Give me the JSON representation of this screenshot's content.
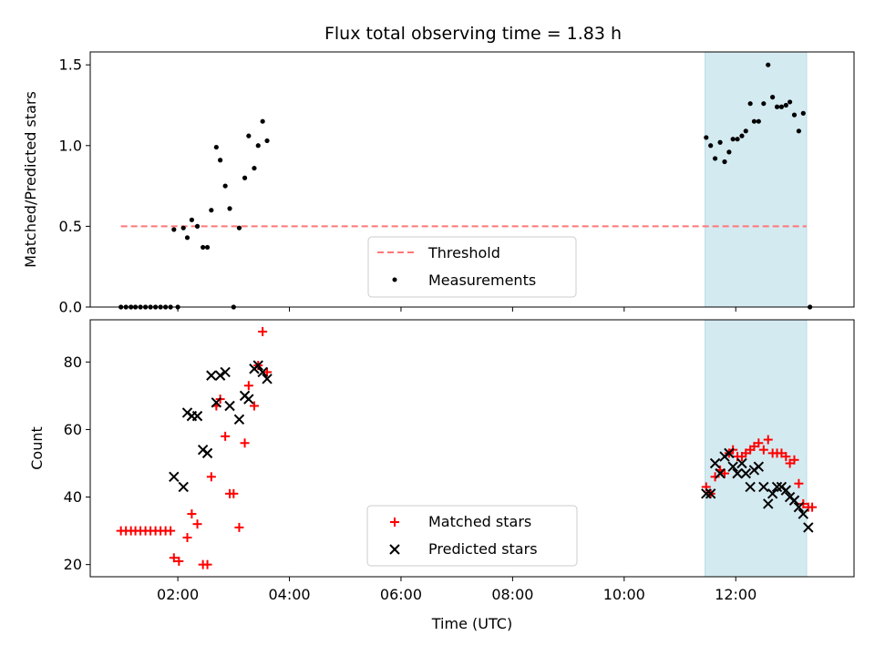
{
  "chart_data": {
    "title": "Flux total observing time = 1.83 h",
    "xlabel": "Time (UTC)",
    "x_ticks": [
      "02:00",
      "04:00",
      "06:00",
      "08:00",
      "10:00",
      "12:00"
    ],
    "x_tick_hours": [
      2,
      4,
      6,
      8,
      10,
      12
    ],
    "xlim_hours": [
      0.43,
      14.12
    ],
    "shaded_region_hours": [
      11.45,
      13.27
    ],
    "shaded_color": "#d4eaf1",
    "panels": [
      {
        "type": "scatter",
        "ylabel": "Matched/Predicted stars",
        "ylim": [
          0,
          1.58
        ],
        "y_ticks": [
          0.0,
          0.5,
          1.0,
          1.5
        ],
        "y_tick_labels": [
          "0.0",
          "0.5",
          "1.0",
          "1.5"
        ],
        "threshold": {
          "name": "Threshold",
          "value": 0.5,
          "x_range_hours": [
            0.98,
            13.27
          ],
          "color": "#ff7777"
        },
        "series": [
          {
            "name": "Measurements",
            "marker": "dot",
            "color": "#000000",
            "points": [
              [
                0.98,
                0
              ],
              [
                1.07,
                0
              ],
              [
                1.16,
                0
              ],
              [
                1.24,
                0
              ],
              [
                1.33,
                0
              ],
              [
                1.42,
                0
              ],
              [
                1.51,
                0
              ],
              [
                1.6,
                0
              ],
              [
                1.69,
                0
              ],
              [
                1.78,
                0
              ],
              [
                1.87,
                0
              ],
              [
                2.0,
                0
              ],
              [
                1.93,
                0.48
              ],
              [
                2.1,
                0.49
              ],
              [
                2.17,
                0.43
              ],
              [
                2.25,
                0.54
              ],
              [
                2.35,
                0.5
              ],
              [
                2.45,
                0.37
              ],
              [
                2.53,
                0.37
              ],
              [
                2.6,
                0.6
              ],
              [
                2.69,
                0.99
              ],
              [
                2.76,
                0.91
              ],
              [
                2.85,
                0.75
              ],
              [
                2.93,
                0.61
              ],
              [
                3.0,
                0
              ],
              [
                3.1,
                0.49
              ],
              [
                3.2,
                0.8
              ],
              [
                3.27,
                1.06
              ],
              [
                3.37,
                0.86
              ],
              [
                3.44,
                1.0
              ],
              [
                3.52,
                1.15
              ],
              [
                3.6,
                1.03
              ],
              [
                11.47,
                1.05
              ],
              [
                11.55,
                1.0
              ],
              [
                11.63,
                0.92
              ],
              [
                11.72,
                1.02
              ],
              [
                11.8,
                0.9
              ],
              [
                11.88,
                0.96
              ],
              [
                11.95,
                1.04
              ],
              [
                12.03,
                1.04
              ],
              [
                12.11,
                1.06
              ],
              [
                12.18,
                1.09
              ],
              [
                12.26,
                1.26
              ],
              [
                12.33,
                1.15
              ],
              [
                12.41,
                1.15
              ],
              [
                12.5,
                1.26
              ],
              [
                12.58,
                1.5
              ],
              [
                12.66,
                1.3
              ],
              [
                12.74,
                1.24
              ],
              [
                12.82,
                1.24
              ],
              [
                12.9,
                1.25
              ],
              [
                12.97,
                1.27
              ],
              [
                13.05,
                1.19
              ],
              [
                13.13,
                1.09
              ],
              [
                13.21,
                1.2
              ],
              [
                13.33,
                0
              ]
            ]
          }
        ],
        "legend": [
          "Threshold",
          "Measurements"
        ],
        "legend_placement": "lower-center"
      },
      {
        "type": "scatter",
        "ylabel": "Count",
        "ylim": [
          16.4,
          92.5
        ],
        "y_ticks": [
          20,
          40,
          60,
          80
        ],
        "y_tick_labels": [
          "20",
          "40",
          "60",
          "80"
        ],
        "series": [
          {
            "name": "Matched stars",
            "marker": "plus",
            "color": "#ff0000",
            "points": [
              [
                0.98,
                30
              ],
              [
                1.07,
                30
              ],
              [
                1.16,
                30
              ],
              [
                1.24,
                30
              ],
              [
                1.33,
                30
              ],
              [
                1.42,
                30
              ],
              [
                1.51,
                30
              ],
              [
                1.6,
                30
              ],
              [
                1.69,
                30
              ],
              [
                1.78,
                30
              ],
              [
                1.87,
                30
              ],
              [
                1.93,
                22
              ],
              [
                2.02,
                21
              ],
              [
                2.17,
                28
              ],
              [
                2.25,
                35
              ],
              [
                2.35,
                32
              ],
              [
                2.45,
                20
              ],
              [
                2.53,
                20
              ],
              [
                2.6,
                46
              ],
              [
                2.69,
                67
              ],
              [
                2.76,
                69
              ],
              [
                2.85,
                58
              ],
              [
                2.93,
                41
              ],
              [
                3.0,
                41
              ],
              [
                3.1,
                31
              ],
              [
                3.2,
                56
              ],
              [
                3.27,
                73
              ],
              [
                3.37,
                67
              ],
              [
                3.44,
                79
              ],
              [
                3.52,
                89
              ],
              [
                3.6,
                77
              ],
              [
                11.47,
                43
              ],
              [
                11.55,
                41
              ],
              [
                11.63,
                46
              ],
              [
                11.72,
                48
              ],
              [
                11.8,
                47
              ],
              [
                11.88,
                53
              ],
              [
                11.95,
                54
              ],
              [
                12.03,
                52
              ],
              [
                12.11,
                52
              ],
              [
                12.18,
                53
              ],
              [
                12.26,
                54
              ],
              [
                12.33,
                55
              ],
              [
                12.41,
                56
              ],
              [
                12.5,
                54
              ],
              [
                12.58,
                57
              ],
              [
                12.66,
                53
              ],
              [
                12.74,
                53
              ],
              [
                12.82,
                53
              ],
              [
                12.9,
                52
              ],
              [
                12.97,
                50
              ],
              [
                13.05,
                51
              ],
              [
                13.13,
                44
              ],
              [
                13.21,
                38
              ],
              [
                13.3,
                37
              ],
              [
                13.37,
                37
              ]
            ]
          },
          {
            "name": "Predicted stars",
            "marker": "x",
            "color": "#000000",
            "points": [
              [
                1.93,
                46
              ],
              [
                2.1,
                43
              ],
              [
                2.17,
                65
              ],
              [
                2.25,
                64
              ],
              [
                2.35,
                64
              ],
              [
                2.45,
                54
              ],
              [
                2.53,
                53
              ],
              [
                2.6,
                76
              ],
              [
                2.69,
                68
              ],
              [
                2.76,
                76
              ],
              [
                2.85,
                77
              ],
              [
                2.93,
                67
              ],
              [
                3.1,
                63
              ],
              [
                3.2,
                70
              ],
              [
                3.27,
                69
              ],
              [
                3.37,
                78
              ],
              [
                3.44,
                79
              ],
              [
                3.52,
                77
              ],
              [
                3.6,
                75
              ],
              [
                11.47,
                41
              ],
              [
                11.55,
                41
              ],
              [
                11.63,
                50
              ],
              [
                11.72,
                47
              ],
              [
                11.8,
                52
              ],
              [
                11.88,
                53
              ],
              [
                11.95,
                49
              ],
              [
                12.03,
                47
              ],
              [
                12.11,
                50
              ],
              [
                12.18,
                47
              ],
              [
                12.26,
                43
              ],
              [
                12.33,
                48
              ],
              [
                12.41,
                49
              ],
              [
                12.5,
                43
              ],
              [
                12.58,
                38
              ],
              [
                12.66,
                41
              ],
              [
                12.74,
                43
              ],
              [
                12.82,
                43
              ],
              [
                12.9,
                42
              ],
              [
                12.97,
                40
              ],
              [
                13.05,
                39
              ],
              [
                13.13,
                37
              ],
              [
                13.21,
                35
              ],
              [
                13.3,
                31
              ]
            ]
          }
        ],
        "legend": [
          "Matched stars",
          "Predicted stars"
        ],
        "legend_placement": "lower-center"
      }
    ]
  }
}
